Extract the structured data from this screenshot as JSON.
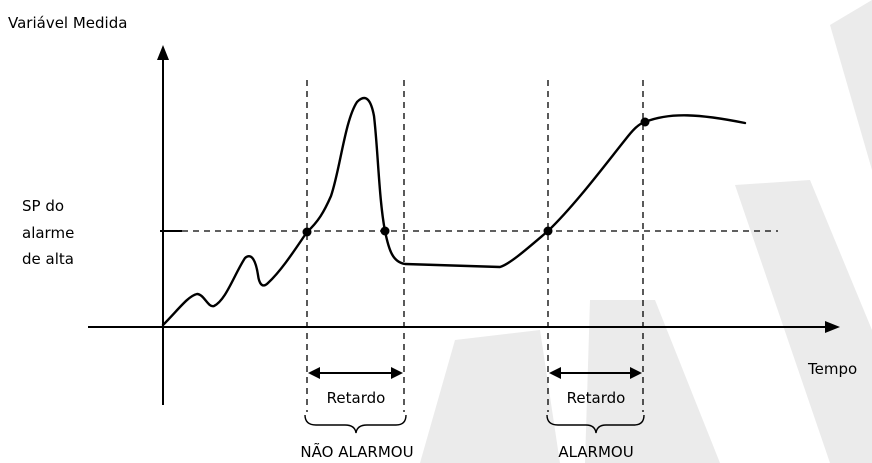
{
  "labels": {
    "y_axis": "Variável Medida",
    "x_axis": "Tempo",
    "setpoint_line1": "SP do",
    "setpoint_line2": "alarme",
    "setpoint_line3": "de alta",
    "delay_1": "Retardo",
    "delay_2": "Retardo",
    "result_1": "NÃO ALARMOU",
    "result_2": "ALARMOU"
  },
  "colors": {
    "ink": "#000000",
    "watermark": "#ebebeb",
    "background": "#ffffff"
  }
}
